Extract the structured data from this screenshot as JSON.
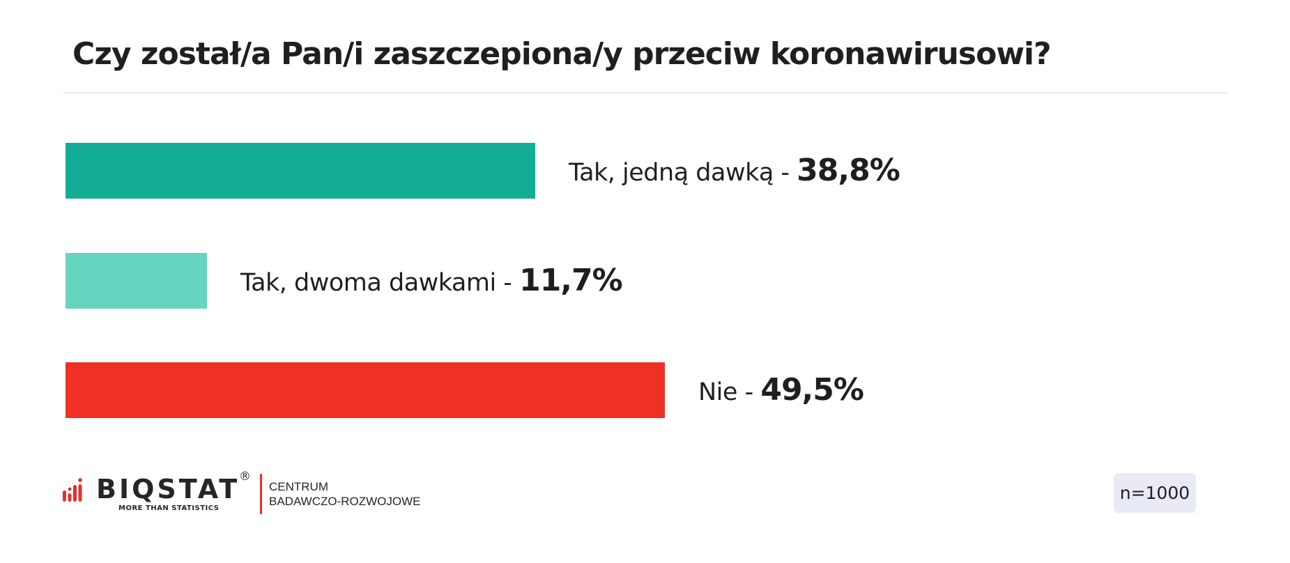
{
  "title": "Czy został/a Pan/i zaszczepiona/y przeciw koronawirusowi?",
  "bars": [
    {
      "label": "Tak, jedną dawką - ",
      "value_text": "38,8%",
      "value": 38.8,
      "color": "#12ad94"
    },
    {
      "label": "Tak, dwoma dawkami - ",
      "value_text": "11,7%",
      "value": 11.7,
      "color": "#66d4bf"
    },
    {
      "label": "Nie - ",
      "value_text": "49,5%",
      "value": 49.5,
      "color": "#ee3124"
    }
  ],
  "footer": {
    "logo_word": "BIQSTAT",
    "logo_registered": "®",
    "logo_tagline": "MORE THAN STATISTICS",
    "org_line1": "CENTRUM",
    "org_line2": "BADAWCZO-ROZWOJOWE",
    "sample_size": "n=1000",
    "brand_color": "#e4302a"
  },
  "chart_data": {
    "type": "bar",
    "orientation": "horizontal",
    "title": "Czy został/a Pan/i zaszczepiona/y przeciw koronawirusowi?",
    "categories": [
      "Tak, jedną dawką",
      "Tak, dwoma dawkami",
      "Nie"
    ],
    "values": [
      38.8,
      11.7,
      49.5
    ],
    "unit": "%",
    "colors": [
      "#12ad94",
      "#66d4bf",
      "#ee3124"
    ],
    "xlabel": "",
    "ylabel": "",
    "grid": false,
    "legend": "none",
    "annotations": [
      "n=1000"
    ]
  }
}
